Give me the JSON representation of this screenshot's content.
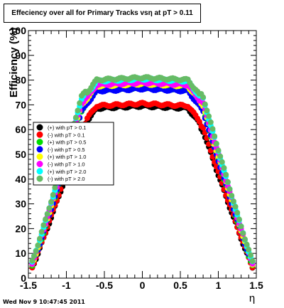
{
  "title": "Effeciency over all for Primary Tracks vsη at pT > 0.11",
  "timestamp": "Wed Nov  9 10:47:45 2011",
  "chart_data": {
    "type": "scatter",
    "title": "Effeciency over all for Primary Tracks vsη at pT > 0.11",
    "xlabel": "η",
    "ylabel": "Efficiency (%)",
    "xlim": [
      -1.5,
      1.5
    ],
    "ylim": [
      0,
      100
    ],
    "xticks": [
      "-1.5",
      "-1",
      "-0.5",
      "0",
      "0.5",
      "1",
      "1.5"
    ],
    "yticks": [
      "0",
      "10",
      "20",
      "30",
      "40",
      "50",
      "60",
      "70",
      "80",
      "90",
      "100"
    ],
    "grid": false,
    "legend_position": "middle-left",
    "series": [
      {
        "name": "(+) with pT > 0.1",
        "color": "#000000",
        "plateau": 69.5
      },
      {
        "name": "(-) with pT > 0.1",
        "color": "#ff0000",
        "plateau": 70.5
      },
      {
        "name": "(+) with pT > 0.5",
        "color": "#00dd00",
        "plateau": 77.0
      },
      {
        "name": "(-) with pT > 0.5",
        "color": "#0000ff",
        "plateau": 76.5
      },
      {
        "name": "(+) with pT > 1.0",
        "color": "#ffff00",
        "plateau": 78.5
      },
      {
        "name": "(-) with pT > 1.0",
        "color": "#ff00ff",
        "plateau": 79.0
      },
      {
        "name": "(+) with pT > 2.0",
        "color": "#00ffff",
        "plateau": 80.5
      },
      {
        "name": "(-) with pT > 2.0",
        "color": "#66bb66",
        "plateau": 81.0
      }
    ]
  }
}
